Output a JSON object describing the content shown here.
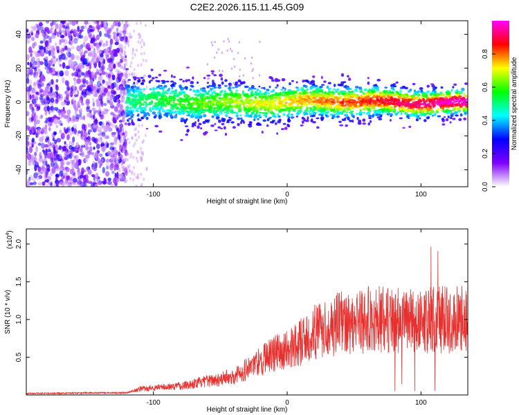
{
  "title": "C2E2.2026.115.11.45.G09",
  "chart_data": [
    {
      "type": "heatmap",
      "name": "spectrogram",
      "xlabel": "Height of straight line (km)",
      "ylabel": "Frequency (Hz)",
      "xlim": [
        -195,
        135
      ],
      "ylim": [
        -50,
        48
      ],
      "x_ticks": [
        -100,
        0,
        100
      ],
      "x_tick_labels": [
        "-100",
        "0",
        "100"
      ],
      "y_ticks": [
        -40,
        -20,
        0,
        20,
        40
      ],
      "y_tick_labels": [
        "-40",
        "-20",
        "0",
        "20",
        "40"
      ],
      "colorbar": {
        "label": "Normalized spectral amplitude",
        "range": [
          0,
          1
        ],
        "ticks": [
          0.0,
          0.2,
          0.4,
          0.6,
          0.8
        ],
        "tick_labels": [
          "0.0",
          "0.2",
          "0.4",
          "0.6",
          "0.8"
        ],
        "colors": [
          "#ffffff",
          "#8000ff",
          "#0000ff",
          "#00ffff",
          "#00ff00",
          "#ffff00",
          "#ff0000",
          "#ff00ff"
        ]
      },
      "features": {
        "noise_region": {
          "x_range": [
            -195,
            -120
          ],
          "amplitude": [
            0.05,
            0.3
          ]
        },
        "signal_band": {
          "x_range": [
            -120,
            135
          ],
          "center_hz": 0,
          "spread_hz": 6,
          "peak_amplitude": 0.9
        }
      }
    },
    {
      "type": "line",
      "name": "snr",
      "xlabel": "Height of straight line (km)",
      "ylabel": "SNR (10 * v/v)",
      "multiplier": "(x10",
      "multiplier_exp": "4",
      "multiplier_close": ")",
      "xlim": [
        -195,
        135
      ],
      "ylim": [
        0,
        2.2
      ],
      "x_ticks": [
        -100,
        0,
        100
      ],
      "x_tick_labels": [
        "-100",
        "0",
        "100"
      ],
      "y_ticks": [
        0.5,
        1.0,
        1.5,
        2.0
      ],
      "y_tick_labels": [
        "0.5",
        "1.0",
        "1.5",
        "2.0"
      ],
      "color": "#e8302e",
      "trend": {
        "x": [
          -195,
          -120,
          -110,
          -80,
          -60,
          -40,
          -30,
          -20,
          -10,
          0,
          10,
          20,
          30,
          40,
          60,
          80,
          100,
          120,
          135
        ],
        "y": [
          0.02,
          0.03,
          0.08,
          0.12,
          0.18,
          0.25,
          0.35,
          0.45,
          0.55,
          0.6,
          0.7,
          0.82,
          0.9,
          0.95,
          1.0,
          1.0,
          0.98,
          1.0,
          1.0
        ]
      }
    }
  ]
}
